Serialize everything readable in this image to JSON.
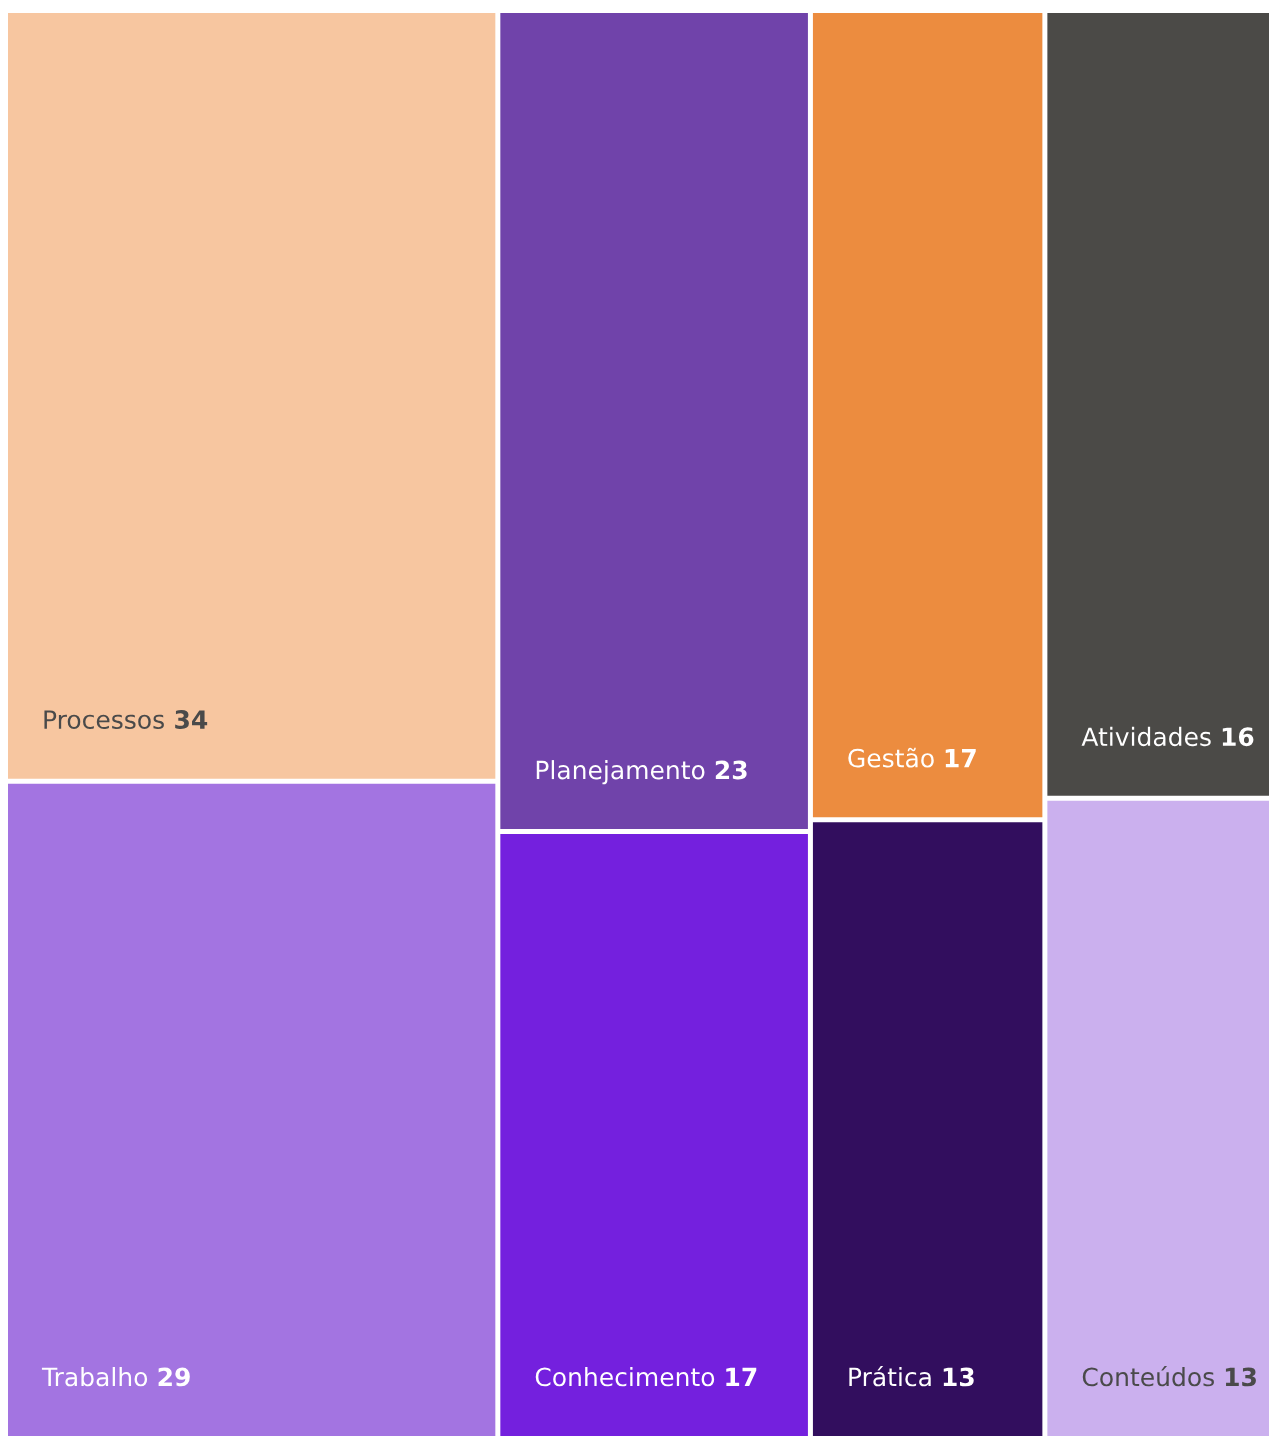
{
  "chart_data": {
    "type": "other",
    "categories": [
      "Processos",
      "Trabalho",
      "Planejamento",
      "Conhecimento",
      "Gestão",
      "Prática",
      "Atividades",
      "Conteúdos"
    ],
    "values": [
      34,
      29,
      23,
      17,
      17,
      13,
      16,
      13
    ],
    "data_labels": true,
    "colors": [
      "#f7c6a0",
      "#a374e1",
      "#7043aa",
      "#7420de",
      "#ec8c3f",
      "#320e5e",
      "#4b4a47",
      "#cbb0ee"
    ]
  }
}
